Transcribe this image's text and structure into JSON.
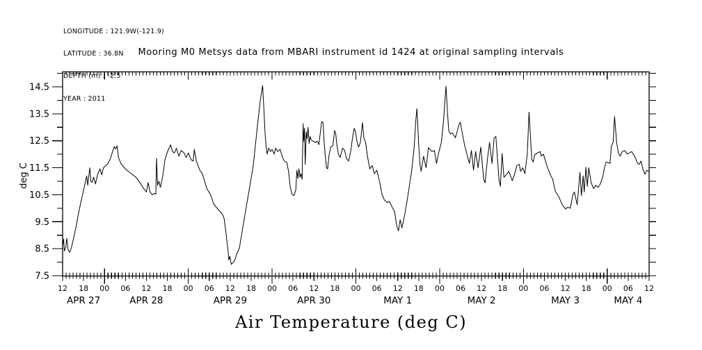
{
  "page": {
    "background": "#ffffff",
    "foreground": "#000000"
  },
  "metadata_block": {
    "longitude": "LONGITUDE : 121.9W(-121.9)",
    "latitude": "LATITUDE : 36.8N",
    "depth": "DEPTH (m) : -2.5",
    "year": "YEAR : 2011"
  },
  "chart_data": {
    "type": "line",
    "title": "Mooring M0 Metsys data from MBARI instrument id 1424 at original sampling intervals",
    "xlabel": "Air Temperature (deg C)",
    "ylabel": "deg C",
    "ylim": [
      7.5,
      15.05
    ],
    "grid": false,
    "legend": "none",
    "y_labeled_ticks": [
      7.5,
      8.5,
      9.5,
      10.5,
      11.5,
      12.5,
      13.5,
      14.5
    ],
    "y_minor_step": 0.5,
    "x_unit": "hours from APR 27 12:00 (year 2011)",
    "x_span_hours": 168,
    "x_hour_label_step": 6,
    "x_hour_labels": [
      "12",
      "18",
      "00",
      "06",
      "12",
      "18",
      "00",
      "06",
      "12",
      "18",
      "00",
      "06",
      "12",
      "18",
      "00",
      "06",
      "12",
      "18",
      "00",
      "06",
      "12",
      "18",
      "00",
      "06",
      "12",
      "18",
      "00",
      "06",
      "12"
    ],
    "x_day_labels": [
      {
        "label": "APR 27",
        "center_t": 6
      },
      {
        "label": "APR 28",
        "center_t": 24
      },
      {
        "label": "APR 29",
        "center_t": 48
      },
      {
        "label": "APR 30",
        "center_t": 72
      },
      {
        "label": "MAY  1",
        "center_t": 96
      },
      {
        "label": "MAY  2",
        "center_t": 120
      },
      {
        "label": "MAY  3",
        "center_t": 144
      },
      {
        "label": "MAY  4",
        "center_t": 162
      }
    ],
    "series": [
      {
        "name": "air temperature (deg C)",
        "color": "#000000",
        "points": [
          [
            0,
            8.62
          ],
          [
            0.3,
            8.85
          ],
          [
            0.5,
            8.42
          ],
          [
            0.9,
            8.55
          ],
          [
            1.2,
            8.88
          ],
          [
            1.6,
            8.45
          ],
          [
            2,
            8.37
          ],
          [
            2.5,
            8.52
          ],
          [
            3.2,
            8.92
          ],
          [
            3.9,
            9.35
          ],
          [
            4.5,
            9.78
          ],
          [
            5.2,
            10.21
          ],
          [
            5.9,
            10.6
          ],
          [
            6.4,
            10.9
          ],
          [
            6.9,
            11.2
          ],
          [
            7.2,
            10.85
          ],
          [
            7.8,
            11.5
          ],
          [
            8.1,
            11
          ],
          [
            8.4,
            10.95
          ],
          [
            8.9,
            11.15
          ],
          [
            9.4,
            10.9
          ],
          [
            10,
            11.24
          ],
          [
            10.7,
            11.46
          ],
          [
            11.2,
            11.24
          ],
          [
            11.7,
            11.5
          ],
          [
            12.4,
            11.58
          ],
          [
            13,
            11.66
          ],
          [
            13.7,
            11.84
          ],
          [
            14.3,
            12.1
          ],
          [
            14.8,
            12.29
          ],
          [
            15.2,
            12.2
          ],
          [
            15.6,
            12.31
          ],
          [
            16,
            11.88
          ],
          [
            16.7,
            11.66
          ],
          [
            17.7,
            11.5
          ],
          [
            18.4,
            11.41
          ],
          [
            19.7,
            11.28
          ],
          [
            21,
            11.15
          ],
          [
            22,
            10.98
          ],
          [
            23,
            10.77
          ],
          [
            24,
            10.6
          ],
          [
            24.5,
            10.95
          ],
          [
            25,
            10.62
          ],
          [
            25.6,
            10.5
          ],
          [
            26.3,
            10.55
          ],
          [
            26.7,
            10.52
          ],
          [
            26.9,
            11.85
          ],
          [
            27.2,
            10.85
          ],
          [
            27.6,
            11
          ],
          [
            28,
            10.77
          ],
          [
            28.7,
            11.2
          ],
          [
            29.3,
            11.79
          ],
          [
            30,
            12.08
          ],
          [
            30.9,
            12.35
          ],
          [
            31.5,
            12.1
          ],
          [
            32,
            12.05
          ],
          [
            32.6,
            12.22
          ],
          [
            33.3,
            11.93
          ],
          [
            34,
            12.14
          ],
          [
            34.8,
            12.05
          ],
          [
            35.4,
            11.88
          ],
          [
            36,
            12.05
          ],
          [
            36.8,
            11.8
          ],
          [
            37.4,
            11.75
          ],
          [
            37.7,
            12.18
          ],
          [
            38.3,
            11.75
          ],
          [
            39.3,
            11.41
          ],
          [
            40,
            11.28
          ],
          [
            40.7,
            11
          ],
          [
            41.3,
            10.73
          ],
          [
            42.3,
            10.52
          ],
          [
            43.3,
            10.15
          ],
          [
            44.5,
            9.96
          ],
          [
            45.3,
            9.85
          ],
          [
            46,
            9.72
          ],
          [
            46.3,
            9.6
          ],
          [
            46.8,
            9.09
          ],
          [
            47.1,
            8.75
          ],
          [
            47.4,
            8.41
          ],
          [
            47.6,
            8.08
          ],
          [
            47.9,
            8.22
          ],
          [
            48.3,
            7.92
          ],
          [
            48.8,
            7.98
          ],
          [
            49.3,
            8.07
          ],
          [
            50,
            8.35
          ],
          [
            50.6,
            8.5
          ],
          [
            51.6,
            9.27
          ],
          [
            52.6,
            10.04
          ],
          [
            53.6,
            10.81
          ],
          [
            54.6,
            11.58
          ],
          [
            55.3,
            12.44
          ],
          [
            55.9,
            13.17
          ],
          [
            56.6,
            13.98
          ],
          [
            57.3,
            14.55
          ],
          [
            57.7,
            13.56
          ],
          [
            58,
            12.78
          ],
          [
            58.3,
            12.27
          ],
          [
            58.6,
            12.01
          ],
          [
            59,
            12.23
          ],
          [
            59.5,
            12.1
          ],
          [
            60,
            12.18
          ],
          [
            60.6,
            12.01
          ],
          [
            61,
            12.23
          ],
          [
            61.6,
            12.1
          ],
          [
            62.3,
            12.18
          ],
          [
            63,
            11.88
          ],
          [
            63.5,
            11.75
          ],
          [
            64.2,
            11.71
          ],
          [
            64.7,
            11.37
          ],
          [
            65.2,
            10.77
          ],
          [
            65.7,
            10.51
          ],
          [
            66.3,
            10.47
          ],
          [
            66.8,
            10.69
          ],
          [
            67.1,
            11.41
          ],
          [
            67.4,
            11.11
          ],
          [
            67.7,
            11.46
          ],
          [
            68,
            11.15
          ],
          [
            68.3,
            11.28
          ],
          [
            68.6,
            11.07
          ],
          [
            68.9,
            13.13
          ],
          [
            69.1,
            12.48
          ],
          [
            69.3,
            12.96
          ],
          [
            69.5,
            11.62
          ],
          [
            69.8,
            12.83
          ],
          [
            70,
            12.57
          ],
          [
            70.3,
            13
          ],
          [
            70.6,
            12.4
          ],
          [
            70.9,
            12.66
          ],
          [
            71.2,
            12.53
          ],
          [
            71.8,
            12.48
          ],
          [
            72.4,
            12.44
          ],
          [
            73,
            12.48
          ],
          [
            73.4,
            12.35
          ],
          [
            74.2,
            13.21
          ],
          [
            74.6,
            13.17
          ],
          [
            74.9,
            12.48
          ],
          [
            75.2,
            12.01
          ],
          [
            75.6,
            11.5
          ],
          [
            75.9,
            11.46
          ],
          [
            76.3,
            11.97
          ],
          [
            76.8,
            12.27
          ],
          [
            77.4,
            12.31
          ],
          [
            77.9,
            12.88
          ],
          [
            78.2,
            12.79
          ],
          [
            78.6,
            12.31
          ],
          [
            79,
            12.01
          ],
          [
            79.5,
            11.88
          ],
          [
            80.2,
            12.23
          ],
          [
            80.8,
            12.14
          ],
          [
            81.3,
            11.84
          ],
          [
            81.9,
            11.75
          ],
          [
            82.5,
            12.1
          ],
          [
            83,
            12.57
          ],
          [
            83.5,
            12.96
          ],
          [
            83.9,
            12.83
          ],
          [
            84.3,
            12.48
          ],
          [
            84.8,
            12.27
          ],
          [
            85.3,
            12.44
          ],
          [
            85.9,
            13.17
          ],
          [
            86.3,
            12.6
          ],
          [
            86.8,
            12.44
          ],
          [
            87.3,
            11.93
          ],
          [
            88,
            11.46
          ],
          [
            88.7,
            11.58
          ],
          [
            89.3,
            11.28
          ],
          [
            90,
            11.41
          ],
          [
            90.8,
            10.98
          ],
          [
            91.5,
            10.51
          ],
          [
            92.2,
            10.3
          ],
          [
            93,
            10.21
          ],
          [
            93.6,
            10.25
          ],
          [
            94.4,
            10.04
          ],
          [
            95.1,
            9.87
          ],
          [
            95.7,
            9.35
          ],
          [
            96.2,
            9.16
          ],
          [
            96.7,
            9.57
          ],
          [
            97.2,
            9.27
          ],
          [
            98,
            9.78
          ],
          [
            98.7,
            10.3
          ],
          [
            99.3,
            10.81
          ],
          [
            100,
            11.41
          ],
          [
            100.7,
            12.27
          ],
          [
            101.2,
            13.3
          ],
          [
            101.5,
            13.69
          ],
          [
            102,
            12.36
          ],
          [
            102.4,
            11.58
          ],
          [
            102.7,
            11.37
          ],
          [
            103.4,
            11.93
          ],
          [
            104.1,
            11.5
          ],
          [
            104.8,
            12.25
          ],
          [
            105.8,
            12.1
          ],
          [
            106.5,
            12.14
          ],
          [
            107.1,
            11.66
          ],
          [
            107.8,
            12.1
          ],
          [
            108.5,
            12.44
          ],
          [
            109.1,
            13.21
          ],
          [
            109.8,
            14.52
          ],
          [
            110.3,
            13.43
          ],
          [
            110.6,
            12.87
          ],
          [
            111.1,
            12.75
          ],
          [
            111.6,
            12.8
          ],
          [
            112.1,
            12.7
          ],
          [
            112.5,
            12.61
          ],
          [
            113.5,
            13.08
          ],
          [
            113.9,
            13.19
          ],
          [
            114.5,
            12.78
          ],
          [
            115.1,
            12.36
          ],
          [
            115.8,
            12.01
          ],
          [
            116.5,
            11.66
          ],
          [
            117.1,
            12.14
          ],
          [
            117.7,
            11.41
          ],
          [
            118.3,
            12.1
          ],
          [
            119,
            11.5
          ],
          [
            119.8,
            12.27
          ],
          [
            120.6,
            11.07
          ],
          [
            121,
            10.94
          ],
          [
            121.7,
            11.84
          ],
          [
            122.3,
            12.44
          ],
          [
            123,
            11.66
          ],
          [
            123.6,
            12.61
          ],
          [
            124.1,
            12.66
          ],
          [
            125,
            11.07
          ],
          [
            125.4,
            10.81
          ],
          [
            125.9,
            12.03
          ],
          [
            126.4,
            11.15
          ],
          [
            127.1,
            11.24
          ],
          [
            127.8,
            11.37
          ],
          [
            128.8,
            11.02
          ],
          [
            129.4,
            11.24
          ],
          [
            130.1,
            11.58
          ],
          [
            130.8,
            11.63
          ],
          [
            131.2,
            11.37
          ],
          [
            131.8,
            11.5
          ],
          [
            132.4,
            11.28
          ],
          [
            133.1,
            12.01
          ],
          [
            133.6,
            13.56
          ],
          [
            134.1,
            12.44
          ],
          [
            134.4,
            11.8
          ],
          [
            134.8,
            11.71
          ],
          [
            135.2,
            11.97
          ],
          [
            136,
            12.05
          ],
          [
            136.8,
            12.1
          ],
          [
            137.1,
            11.93
          ],
          [
            137.7,
            12.01
          ],
          [
            138.7,
            11.58
          ],
          [
            139.7,
            11.24
          ],
          [
            140.4,
            11.07
          ],
          [
            141.1,
            10.64
          ],
          [
            142.1,
            10.43
          ],
          [
            143.1,
            10.13
          ],
          [
            144.1,
            9.97
          ],
          [
            144.7,
            10.04
          ],
          [
            145.4,
            10
          ],
          [
            146.2,
            10.51
          ],
          [
            146.6,
            10.6
          ],
          [
            147.4,
            10.13
          ],
          [
            148.2,
            11.33
          ],
          [
            148.6,
            10.47
          ],
          [
            149.1,
            11.2
          ],
          [
            149.4,
            10.6
          ],
          [
            149.9,
            11.52
          ],
          [
            150.3,
            10.81
          ],
          [
            150.7,
            11.5
          ],
          [
            151.4,
            10.94
          ],
          [
            152.1,
            10.73
          ],
          [
            152.7,
            10.85
          ],
          [
            153.4,
            10.77
          ],
          [
            154,
            10.9
          ],
          [
            154.7,
            11.15
          ],
          [
            155.2,
            11.5
          ],
          [
            155.7,
            11.71
          ],
          [
            156.2,
            11.7
          ],
          [
            156.8,
            11.66
          ],
          [
            157.2,
            12.31
          ],
          [
            157.7,
            12.44
          ],
          [
            158.1,
            13.4
          ],
          [
            158.7,
            12.44
          ],
          [
            159.2,
            12.05
          ],
          [
            159.7,
            11.93
          ],
          [
            160.3,
            12.1
          ],
          [
            161,
            12.14
          ],
          [
            161.7,
            12.01
          ],
          [
            162.3,
            12.05
          ],
          [
            163,
            12.1
          ],
          [
            164,
            11.89
          ],
          [
            164.7,
            11.66
          ],
          [
            165.2,
            11.63
          ],
          [
            165.7,
            11.75
          ],
          [
            166.2,
            11.46
          ],
          [
            166.8,
            11.26
          ],
          [
            167.3,
            11.41
          ],
          [
            167.9,
            11.37
          ]
        ]
      }
    ]
  }
}
